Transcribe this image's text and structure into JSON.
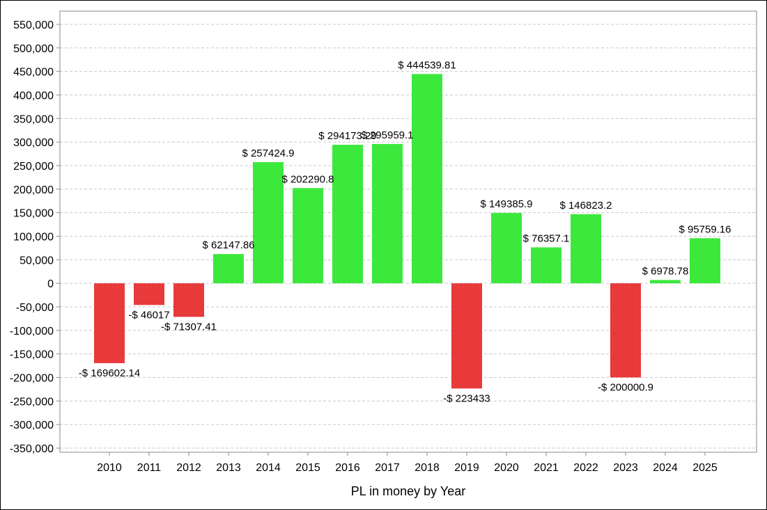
{
  "chart_data": {
    "type": "bar",
    "categories": [
      "2010",
      "2011",
      "2012",
      "2013",
      "2014",
      "2015",
      "2016",
      "2017",
      "2018",
      "2019",
      "2020",
      "2021",
      "2022",
      "2023",
      "2024",
      "2025"
    ],
    "values": [
      -169602.14,
      -46017,
      -71307.41,
      62147.86,
      257424.9,
      202290.8,
      294173.29,
      295959.1,
      444539.81,
      -223433,
      149385.9,
      76357.1,
      146823.2,
      -200000.9,
      6978.78,
      95759.16
    ],
    "data_labels": [
      "-$ 169602.14",
      "-$ 46017",
      "-$ 71307.41",
      "$ 62147.86",
      "$ 257424.9",
      "$ 202290.8",
      "$ 294173.29",
      "$ 295959.1",
      "$ 444539.81",
      "-$ 223433",
      "$ 149385.9",
      "$ 76357.1",
      "$ 146823.2",
      "-$ 200000.9",
      "$ 6978.78",
      "$ 95759.16"
    ],
    "xlabel": "PL in money by Year",
    "ylabel": "",
    "ylim": [
      -350000,
      550000
    ],
    "yticks": [
      550000,
      500000,
      450000,
      400000,
      350000,
      300000,
      250000,
      200000,
      150000,
      100000,
      50000,
      0,
      -50000,
      -100000,
      -150000,
      -200000,
      -250000,
      -300000,
      -350000
    ],
    "ytick_labels": [
      "550,000",
      "500,000",
      "450,000",
      "400,000",
      "350,000",
      "300,000",
      "250,000",
      "200,000",
      "150,000",
      "100,000",
      "50,000",
      "0",
      "-50,000",
      "-100,000",
      "-150,000",
      "-200,000",
      "-250,000",
      "-300,000",
      "-350,000"
    ],
    "grid": true,
    "colors": {
      "positive": "#3de83d",
      "negative": "#e8393b",
      "grid": "#c8c8c8",
      "axis": "#888888"
    }
  }
}
